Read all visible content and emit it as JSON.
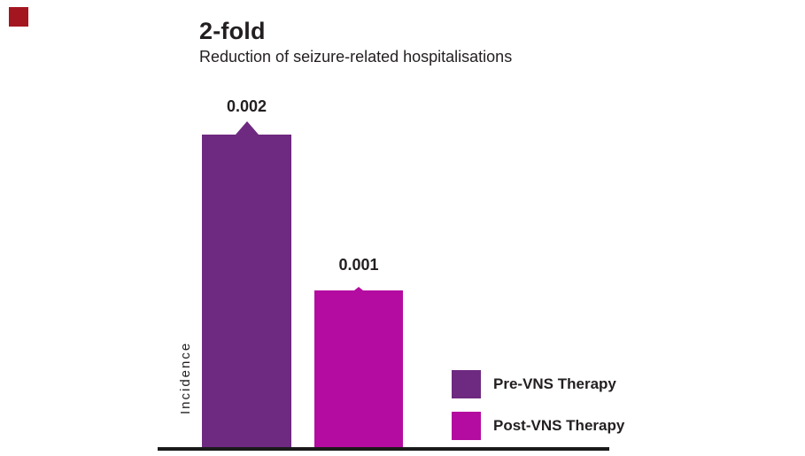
{
  "page": {
    "background": "#ffffff"
  },
  "brand": {
    "mark_color": "#a4161f"
  },
  "chart_data": {
    "type": "bar",
    "title": "2-fold",
    "subtitle": "Reduction of seizure-related hospitalisations",
    "ylabel": "Incidence",
    "xlabel": "",
    "categories": [
      "Pre-VNS Therapy",
      "Post-VNS Therapy"
    ],
    "values": [
      0.002,
      0.001
    ],
    "data_labels": [
      "0.002",
      "0.001"
    ],
    "colors": [
      "#6e2a80",
      "#b40ca0"
    ],
    "ylim": [
      0,
      0.002
    ],
    "grid": false,
    "legend_position": "bottom-right",
    "legend": [
      "Pre-VNS Therapy",
      "Post-VNS Therapy"
    ],
    "text_color": "#231f20",
    "axis_color": "#1a1a1a"
  }
}
